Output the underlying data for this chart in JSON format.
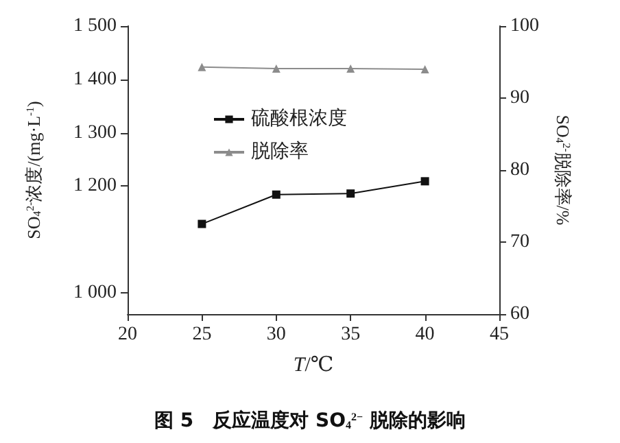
{
  "chart_data": {
    "type": "line",
    "title": "图 5　反应温度对 SO$_{4}$$^{2−}$ 脱除的影响",
    "xlabel": "T/℃",
    "ylabel": "SO$_{4}$$^{2-}$浓度/(mg·L$^{-1}$)",
    "y2label": "SO$_{4}$$^{2-}$脱除率/%",
    "x": [
      25,
      30,
      35,
      40
    ],
    "series": [
      {
        "name": "硫酸根浓度",
        "color": "#111111",
        "marker": "square",
        "values": [
          1129,
          1184,
          1186,
          1209
        ]
      },
      {
        "name": "脱除率",
        "color": "#8c8c8c",
        "marker": "triangle",
        "axis": "y2",
        "values": [
          94.3,
          94.1,
          94.1,
          94.0
        ]
      }
    ],
    "xlim": [
      20,
      45
    ],
    "xticks": [
      20,
      25,
      30,
      35,
      40,
      45
    ],
    "ylim": [
      960,
      1500
    ],
    "yticks": [
      {
        "value": 1000,
        "label": "1 000"
      },
      {
        "value": 1200,
        "label": "1 200"
      },
      {
        "value": 1300,
        "label": "1 300"
      },
      {
        "value": 1400,
        "label": "1 400"
      },
      {
        "value": 1500,
        "label": "1 500"
      }
    ],
    "y2lim": [
      60,
      100
    ],
    "y2ticks": [
      60,
      70,
      80,
      90,
      100
    ],
    "legend": "top left",
    "grid": false,
    "line_style": "solid"
  }
}
